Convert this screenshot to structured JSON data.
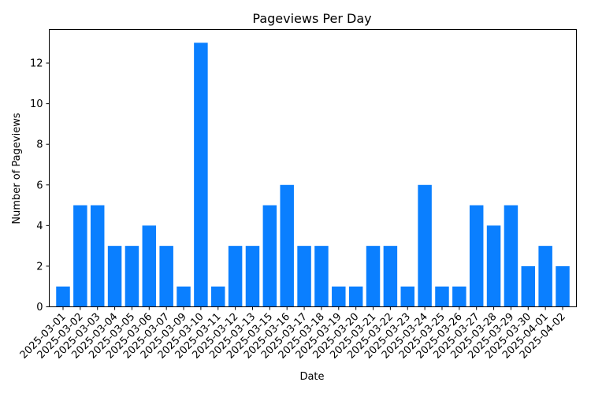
{
  "chart_data": {
    "type": "bar",
    "title": "Pageviews Per Day",
    "xlabel": "Date",
    "ylabel": "Number of Pageviews",
    "ylim": [
      0,
      13.65
    ],
    "yticks": [
      0,
      2,
      4,
      6,
      8,
      10,
      12
    ],
    "grid": false,
    "legend": "none",
    "bar_color": "#0a7fff",
    "categories": [
      "2025-03-01",
      "2025-03-02",
      "2025-03-03",
      "2025-03-04",
      "2025-03-05",
      "2025-03-06",
      "2025-03-07",
      "2025-03-09",
      "2025-03-10",
      "2025-03-11",
      "2025-03-12",
      "2025-03-13",
      "2025-03-15",
      "2025-03-16",
      "2025-03-17",
      "2025-03-18",
      "2025-03-19",
      "2025-03-20",
      "2025-03-21",
      "2025-03-22",
      "2025-03-23",
      "2025-03-24",
      "2025-03-25",
      "2025-03-26",
      "2025-03-27",
      "2025-03-28",
      "2025-03-29",
      "2025-03-30",
      "2025-04-01",
      "2025-04-02"
    ],
    "values": [
      1,
      5,
      5,
      3,
      3,
      4,
      3,
      1,
      13,
      1,
      3,
      3,
      5,
      6,
      3,
      3,
      1,
      1,
      3,
      3,
      1,
      6,
      1,
      1,
      5,
      4,
      5,
      2,
      3,
      2
    ]
  }
}
